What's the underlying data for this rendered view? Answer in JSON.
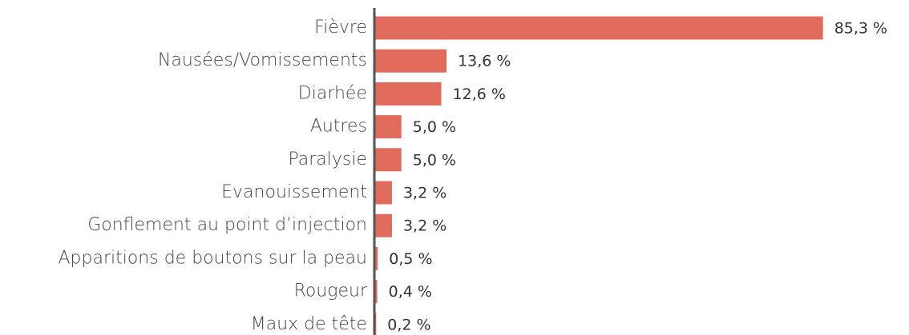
{
  "chart_data": {
    "type": "bar",
    "orientation": "horizontal",
    "color": "#e06b5a",
    "categories": [
      "Fièvre",
      "Nausées/Vomissements",
      "Diarhée",
      "Autres",
      "Paralysie",
      "Evanouissement",
      "Gonflement au point d’injection",
      "Apparitions de boutons sur la peau",
      "Rougeur",
      "Maux de tête"
    ],
    "values": [
      85.3,
      13.6,
      12.6,
      5.0,
      5.0,
      3.2,
      3.2,
      0.5,
      0.4,
      0.2
    ],
    "value_labels": [
      "85,3 %",
      "13,6 %",
      "12,6 %",
      "5,0 %",
      "5,0 %",
      "3,2 %",
      "3,2 %",
      "0,5 %",
      "0,4 %",
      "0,2 %"
    ]
  }
}
